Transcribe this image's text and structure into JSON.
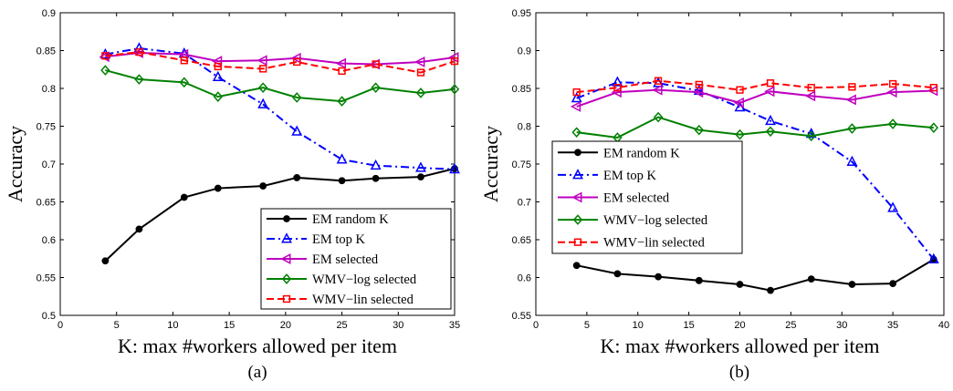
{
  "chart_data": [
    {
      "type": "line",
      "caption": "(a)",
      "xlabel": "K: max #workers allowed per item",
      "ylabel": "Accuracy",
      "xlim": [
        0,
        35
      ],
      "ylim": [
        0.5,
        0.9
      ],
      "xticks": [
        0,
        5,
        10,
        15,
        20,
        25,
        30,
        35
      ],
      "yticks": [
        0.5,
        0.55,
        0.6,
        0.65,
        0.7,
        0.75,
        0.8,
        0.85,
        0.9
      ],
      "legend_position": "bottom-right",
      "series": [
        {
          "name": "EM random K",
          "color": "#000000",
          "marker": "circle",
          "dash": "solid",
          "x": [
            4,
            7,
            11,
            14,
            18,
            21,
            25,
            28,
            32,
            35
          ],
          "y": [
            0.572,
            0.614,
            0.656,
            0.668,
            0.671,
            0.682,
            0.678,
            0.681,
            0.683,
            0.694
          ]
        },
        {
          "name": "EM top K",
          "color": "#0000ff",
          "marker": "triangle-up",
          "dash": "dashdot",
          "x": [
            4,
            7,
            11,
            14,
            18,
            21,
            25,
            28,
            32,
            35
          ],
          "y": [
            0.845,
            0.853,
            0.846,
            0.815,
            0.779,
            0.743,
            0.706,
            0.698,
            0.695,
            0.693
          ]
        },
        {
          "name": "EM selected",
          "color": "#bf00bf",
          "marker": "triangle-left",
          "dash": "solid",
          "x": [
            4,
            7,
            11,
            14,
            18,
            21,
            25,
            28,
            32,
            35
          ],
          "y": [
            0.842,
            0.847,
            0.845,
            0.836,
            0.837,
            0.84,
            0.833,
            0.832,
            0.835,
            0.841
          ]
        },
        {
          "name": "WMV−log selected",
          "color": "#008000",
          "marker": "diamond",
          "dash": "solid",
          "x": [
            4,
            7,
            11,
            14,
            18,
            21,
            25,
            28,
            32,
            35
          ],
          "y": [
            0.824,
            0.812,
            0.808,
            0.789,
            0.801,
            0.788,
            0.783,
            0.801,
            0.794,
            0.799
          ]
        },
        {
          "name": "WMV−lin selected",
          "color": "#ff0000",
          "marker": "square",
          "dash": "dashed",
          "x": [
            4,
            7,
            11,
            14,
            18,
            21,
            25,
            28,
            32,
            35
          ],
          "y": [
            0.843,
            0.848,
            0.837,
            0.829,
            0.826,
            0.835,
            0.823,
            0.832,
            0.821,
            0.836
          ]
        }
      ]
    },
    {
      "type": "line",
      "caption": "(b)",
      "xlabel": "K: max #workers allowed per item",
      "ylabel": "Accuracy",
      "xlim": [
        0,
        40
      ],
      "ylim": [
        0.55,
        0.95
      ],
      "xticks": [
        0,
        5,
        10,
        15,
        20,
        25,
        30,
        35,
        40
      ],
      "yticks": [
        0.55,
        0.6,
        0.65,
        0.7,
        0.75,
        0.8,
        0.85,
        0.9,
        0.95
      ],
      "legend_position": "middle-left",
      "series": [
        {
          "name": "EM random K",
          "color": "#000000",
          "marker": "circle",
          "dash": "solid",
          "x": [
            4,
            8,
            12,
            16,
            20,
            23,
            27,
            31,
            35,
            39
          ],
          "y": [
            0.616,
            0.605,
            0.601,
            0.596,
            0.591,
            0.583,
            0.598,
            0.591,
            0.592,
            0.624
          ]
        },
        {
          "name": "EM top K",
          "color": "#0000ff",
          "marker": "triangle-up",
          "dash": "dashdot",
          "x": [
            4,
            8,
            12,
            16,
            20,
            23,
            27,
            31,
            35,
            39
          ],
          "y": [
            0.837,
            0.858,
            0.857,
            0.847,
            0.825,
            0.807,
            0.79,
            0.753,
            0.692,
            0.624
          ]
        },
        {
          "name": "EM selected",
          "color": "#bf00bf",
          "marker": "triangle-left",
          "dash": "solid",
          "x": [
            4,
            8,
            12,
            16,
            20,
            23,
            27,
            31,
            35,
            39
          ],
          "y": [
            0.826,
            0.845,
            0.848,
            0.845,
            0.831,
            0.846,
            0.84,
            0.835,
            0.845,
            0.847
          ]
        },
        {
          "name": "WMV−log selected",
          "color": "#008000",
          "marker": "diamond",
          "dash": "solid",
          "x": [
            4,
            8,
            12,
            16,
            20,
            23,
            27,
            31,
            35,
            39
          ],
          "y": [
            0.792,
            0.785,
            0.812,
            0.795,
            0.789,
            0.793,
            0.787,
            0.797,
            0.803,
            0.798
          ]
        },
        {
          "name": "WMV−lin selected",
          "color": "#ff0000",
          "marker": "square",
          "dash": "dashed",
          "x": [
            4,
            8,
            12,
            16,
            20,
            23,
            27,
            31,
            35,
            39
          ],
          "y": [
            0.845,
            0.851,
            0.86,
            0.855,
            0.848,
            0.857,
            0.851,
            0.852,
            0.856,
            0.851
          ]
        }
      ]
    }
  ]
}
